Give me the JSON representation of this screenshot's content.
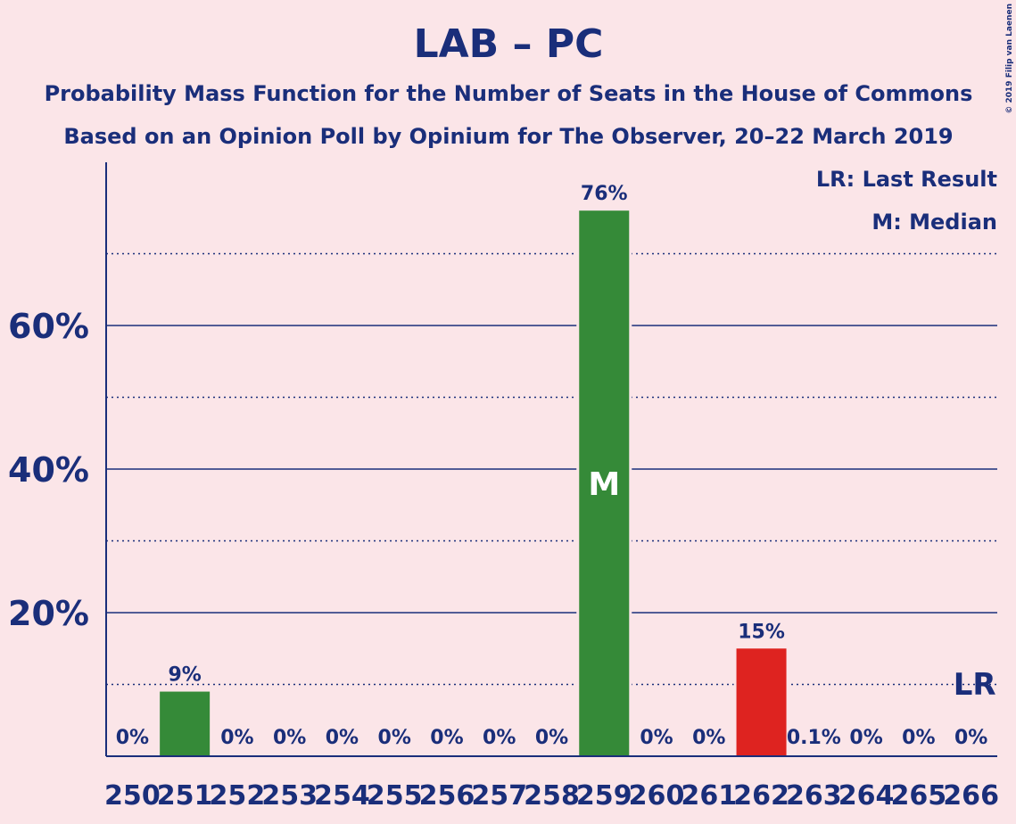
{
  "chart_data": {
    "type": "bar",
    "title": "LAB – PC",
    "subtitle_1": "Probability Mass Function for the Number of Seats in the House of Commons",
    "subtitle_2": "Based on an Opinion Poll by Opinium for The Observer, 20–22 March 2019",
    "copyright": "© 2019 Filip van Laenen",
    "categories": [
      "250",
      "251",
      "252",
      "253",
      "254",
      "255",
      "256",
      "257",
      "258",
      "259",
      "260",
      "261",
      "262",
      "263",
      "264",
      "265",
      "266"
    ],
    "values": [
      0,
      9,
      0,
      0,
      0,
      0,
      0,
      0,
      0,
      76,
      0,
      0,
      15,
      0.1,
      0,
      0,
      0
    ],
    "value_labels": [
      "0%",
      "9%",
      "0%",
      "0%",
      "0%",
      "0%",
      "0%",
      "0%",
      "0%",
      "76%",
      "0%",
      "0%",
      "15%",
      "0.1%",
      "0%",
      "0%",
      "0%"
    ],
    "bar_colors": [
      "#358a38",
      "#358a38",
      "#358a38",
      "#358a38",
      "#358a38",
      "#358a38",
      "#358a38",
      "#358a38",
      "#358a38",
      "#358a38",
      "#358a38",
      "#358a38",
      "#de2320",
      "#358a38",
      "#358a38",
      "#358a38",
      "#358a38"
    ],
    "ylim": [
      0,
      80
    ],
    "yticks": [
      20,
      40,
      60
    ],
    "ytick_labels": [
      "20%",
      "40%",
      "60%"
    ],
    "minor_gridlines": [
      10,
      30,
      50,
      70
    ],
    "median_category": "259",
    "median_marker": "M",
    "last_result_category": "266",
    "last_result_marker": "LR",
    "legend": [
      "LR: Last Result",
      "M: Median"
    ],
    "legend_position": "top-right",
    "colors": {
      "background": "#fbe5e8",
      "text": "#1a2e7a",
      "bar": "#358a38",
      "highlight": "#de2320"
    }
  }
}
